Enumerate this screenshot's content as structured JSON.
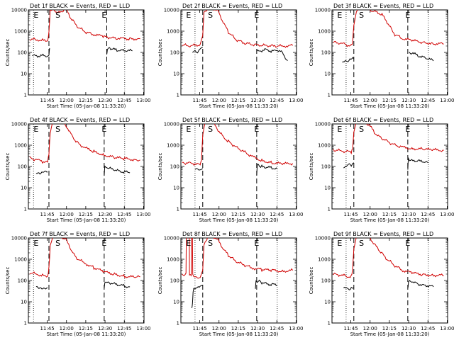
{
  "figure": {
    "xlabel": "Start Time (05-Jan-08 11:33:20)",
    "ylabel": "Counts/sec"
  },
  "chart_data": [
    {
      "type": "line",
      "title": "Det 1f BLACK = Events, RED = LLD",
      "xlabel": "Start Time (05-Jan-08 11:33:20)",
      "ylabel": "Counts/sec",
      "x_ticks": [
        "11:45",
        "12:00",
        "12:15",
        "12:30",
        "12:45",
        "13:00"
      ],
      "y_ticks": [
        "1",
        "10",
        "100",
        "1000",
        "10000"
      ],
      "y_scale": "log",
      "xlim_min": [
        -3,
        87
      ],
      "ylim": [
        1,
        10000
      ],
      "markers": [
        "E",
        "S",
        "E"
      ],
      "marker_times_min": [
        3,
        20,
        56
      ],
      "dotted_lines_min": [
        1,
        72
      ],
      "dashed_lines_min": [
        13,
        58
      ],
      "series": [
        {
          "name": "Events",
          "color": "#000000",
          "x_min": [
            0,
            5,
            10,
            13,
            13.5,
            20,
            30,
            40,
            50,
            56
          ],
          "y": [
            70,
            68,
            72,
            70,
            160,
            null,
            null,
            null,
            null,
            null
          ],
          "x2_min": [
            58,
            58.5,
            62,
            66,
            70,
            74,
            78
          ],
          "y2": [
            70,
            150,
            140,
            130,
            125,
            120,
            118
          ]
        },
        {
          "name": "LLD",
          "color": "#d00000",
          "x_min": [
            -2,
            4,
            8,
            12,
            13,
            14,
            16,
            20,
            24,
            26,
            30,
            36,
            42,
            48,
            56,
            62,
            68,
            76,
            84
          ],
          "y": [
            420,
            400,
            370,
            360,
            900,
            9000,
            12000,
            7000,
            9000,
            12000,
            4000,
            1500,
            900,
            700,
            550,
            480,
            450,
            440,
            440
          ]
        }
      ]
    },
    {
      "type": "line",
      "title": "Det 2f BLACK = Events, RED = LLD",
      "xlabel": "Start Time (05-Jan-08 11:33:20)",
      "ylabel": "Counts/sec",
      "x_ticks": [
        "11:45",
        "12:00",
        "12:15",
        "12:30",
        "12:45",
        "13:00"
      ],
      "y_ticks": [
        "1",
        "10",
        "100",
        "1000",
        "10000"
      ],
      "y_scale": "log",
      "xlim_min": [
        -3,
        87
      ],
      "ylim": [
        1,
        10000
      ],
      "markers": [
        "E",
        "S",
        "E"
      ],
      "marker_times_min": [
        3,
        20,
        56
      ],
      "dotted_lines_min": [
        8,
        72
      ],
      "dashed_lines_min": [
        14,
        56
      ],
      "series": [
        {
          "name": "Events",
          "color": "#000000",
          "x_min": [
            6,
            8,
            10,
            12,
            14
          ],
          "y": [
            100,
            130,
            110,
            140,
            180
          ],
          "x2_min": [
            56,
            60,
            64,
            68,
            72,
            76,
            80
          ],
          "y2": [
            110,
            120,
            140,
            110,
            130,
            100,
            40
          ]
        },
        {
          "name": "LLD",
          "color": "#d00000",
          "x_min": [
            -2,
            4,
            8,
            12,
            14,
            15,
            18,
            22,
            26,
            30,
            34,
            40,
            46,
            52,
            58,
            64,
            70,
            76,
            84
          ],
          "y": [
            220,
            210,
            220,
            230,
            600,
            8000,
            12000,
            12000,
            9000,
            2500,
            900,
            400,
            280,
            240,
            220,
            210,
            200,
            200,
            210
          ]
        }
      ]
    },
    {
      "type": "line",
      "title": "Det 3f BLACK = Events, RED = LLD",
      "xlabel": "Start Time (05-Jan-08 11:33:20)",
      "ylabel": "Counts/sec",
      "x_ticks": [
        "11:45",
        "12:00",
        "12:15",
        "12:30",
        "12:45",
        "13:00"
      ],
      "y_ticks": [
        "1",
        "10",
        "100",
        "1000",
        "10000"
      ],
      "y_scale": "log",
      "xlim_min": [
        -3,
        87
      ],
      "ylim": [
        1,
        10000
      ],
      "markers": [
        "E",
        "S",
        "E"
      ],
      "marker_times_min": [
        3,
        20,
        56
      ],
      "dotted_lines_min": [
        8,
        72
      ],
      "dashed_lines_min": [
        14,
        56
      ],
      "series": [
        {
          "name": "Events",
          "color": "#000000",
          "x_min": [
            5,
            8,
            11,
            14
          ],
          "y": [
            30,
            40,
            45,
            50
          ],
          "x2_min": [
            57,
            60,
            64,
            68,
            72,
            76
          ],
          "y2": [
            100,
            90,
            70,
            60,
            50,
            40
          ]
        },
        {
          "name": "LLD",
          "color": "#d00000",
          "x_min": [
            -2,
            4,
            8,
            12,
            13,
            14,
            16,
            20,
            24,
            28,
            32,
            36,
            40,
            46,
            52,
            60,
            68,
            76,
            84
          ],
          "y": [
            300,
            270,
            230,
            210,
            260,
            2000,
            9000,
            12000,
            12000,
            9000,
            8000,
            6000,
            2500,
            700,
            450,
            350,
            300,
            260,
            250
          ]
        }
      ]
    },
    {
      "type": "line",
      "title": "Det 4f BLACK = Events, RED = LLD",
      "xlabel": "Start Time (05-Jan-08 11:33:20)",
      "ylabel": "Counts/sec",
      "x_ticks": [
        "11:45",
        "12:00",
        "12:15",
        "12:30",
        "12:45",
        "13:00"
      ],
      "y_ticks": [
        "1",
        "10",
        "100",
        "1000",
        "10000"
      ],
      "y_scale": "log",
      "xlim_min": [
        -3,
        87
      ],
      "ylim": [
        1,
        10000
      ],
      "markers": [
        "E",
        "S",
        "E"
      ],
      "marker_times_min": [
        3,
        20,
        56
      ],
      "dotted_lines_min": [
        1,
        72
      ],
      "dashed_lines_min": [
        13,
        56
      ],
      "series": [
        {
          "name": "Events",
          "color": "#000000",
          "x_min": [
            3,
            6,
            9,
            12
          ],
          "y": [
            50,
            45,
            60,
            55
          ],
          "x2_min": [
            56,
            56.5,
            60,
            64,
            68,
            72,
            76
          ],
          "y2": [
            40,
            90,
            80,
            70,
            60,
            55,
            50
          ]
        },
        {
          "name": "LLD",
          "color": "#d00000",
          "x_min": [
            -2,
            4,
            8,
            12,
            13,
            14,
            16,
            18,
            22,
            26,
            30,
            34,
            40,
            48,
            56,
            64,
            72,
            80,
            84
          ],
          "y": [
            250,
            200,
            170,
            160,
            400,
            4000,
            12000,
            12000,
            12000,
            9000,
            3500,
            1500,
            800,
            500,
            350,
            260,
            230,
            210,
            200
          ]
        }
      ]
    },
    {
      "type": "line",
      "title": "Det 5f BLACK = Events, RED = LLD",
      "xlabel": "Start Time (05-Jan-08 11:33:20)",
      "ylabel": "Counts/sec",
      "x_ticks": [
        "11:45",
        "12:00",
        "12:15",
        "12:30",
        "12:45",
        "13:00"
      ],
      "y_ticks": [
        "1",
        "10",
        "100",
        "1000",
        "10000"
      ],
      "y_scale": "log",
      "xlim_min": [
        -3,
        87
      ],
      "ylim": [
        1,
        10000
      ],
      "markers": [
        "E",
        "S",
        "E"
      ],
      "marker_times_min": [
        3,
        20,
        56
      ],
      "dotted_lines_min": [
        8,
        72
      ],
      "dashed_lines_min": [
        14,
        56
      ],
      "series": [
        {
          "name": "Events",
          "color": "#000000",
          "x_min": [
            8,
            10,
            12,
            14
          ],
          "y": [
            70,
            65,
            70,
            80
          ],
          "x2_min": [
            56,
            56.5,
            60,
            64,
            68,
            72
          ],
          "y2": [
            40,
            120,
            100,
            90,
            85,
            80
          ]
        },
        {
          "name": "LLD",
          "color": "#d00000",
          "x_min": [
            -2,
            4,
            8,
            12,
            13,
            14,
            16,
            18,
            22,
            26,
            30,
            34,
            40,
            46,
            52,
            60,
            68,
            76,
            84
          ],
          "y": [
            150,
            140,
            130,
            120,
            200,
            3000,
            12000,
            12000,
            12000,
            5000,
            2500,
            1500,
            800,
            500,
            300,
            190,
            150,
            130,
            140
          ]
        }
      ]
    },
    {
      "type": "line",
      "title": "Det 6f BLACK = Events, RED = LLD",
      "xlabel": "Start Time (05-Jan-08 11:33:20)",
      "ylabel": "Counts/sec",
      "x_ticks": [
        "11:45",
        "12:00",
        "12:15",
        "12:30",
        "12:45",
        "13:00"
      ],
      "y_ticks": [
        "1",
        "10",
        "100",
        "1000",
        "10000"
      ],
      "y_scale": "log",
      "xlim_min": [
        -3,
        87
      ],
      "ylim": [
        1,
        10000
      ],
      "markers": [
        "E",
        "S",
        "E"
      ],
      "marker_times_min": [
        3,
        20,
        56
      ],
      "dotted_lines_min": [
        8,
        72
      ],
      "dashed_lines_min": [
        14,
        56
      ],
      "series": [
        {
          "name": "Events",
          "color": "#000000",
          "x_min": [
            6,
            9,
            12,
            14
          ],
          "y": [
            100,
            110,
            120,
            150
          ],
          "x2_min": [
            56,
            56.5,
            60,
            64,
            68,
            72
          ],
          "y2": [
            80,
            220,
            200,
            180,
            170,
            150
          ]
        },
        {
          "name": "LLD",
          "color": "#d00000",
          "x_min": [
            -2,
            4,
            8,
            12,
            13,
            14,
            16,
            18,
            22,
            26,
            30,
            34,
            40,
            46,
            52,
            60,
            68,
            76,
            84
          ],
          "y": [
            600,
            550,
            500,
            480,
            700,
            4000,
            12000,
            12000,
            12000,
            9000,
            4000,
            2500,
            1500,
            1000,
            800,
            700,
            650,
            600,
            580
          ]
        }
      ]
    },
    {
      "type": "line",
      "title": "Det 7f BLACK = Events, RED = LLD",
      "xlabel": "Start Time (05-Jan-08 11:33:20)",
      "ylabel": "Counts/sec",
      "x_ticks": [
        "11:45",
        "12:00",
        "12:15",
        "12:30",
        "12:45",
        "13:00"
      ],
      "y_ticks": [
        "1",
        "10",
        "100",
        "1000",
        "10000"
      ],
      "y_scale": "log",
      "xlim_min": [
        -3,
        87
      ],
      "ylim": [
        1,
        10000
      ],
      "markers": [
        "E",
        "S",
        "E"
      ],
      "marker_times_min": [
        3,
        20,
        56
      ],
      "dotted_lines_min": [
        1,
        72
      ],
      "dashed_lines_min": [
        13,
        56
      ],
      "series": [
        {
          "name": "Events",
          "color": "#000000",
          "x_min": [
            3,
            6,
            9,
            12
          ],
          "y": [
            50,
            45,
            40,
            45
          ],
          "x2_min": [
            56,
            56.5,
            60,
            64,
            68,
            72,
            76
          ],
          "y2": [
            40,
            90,
            80,
            70,
            60,
            55,
            50
          ]
        },
        {
          "name": "LLD",
          "color": "#d00000",
          "x_min": [
            -2,
            4,
            8,
            12,
            13,
            14,
            16,
            18,
            22,
            26,
            30,
            34,
            40,
            48,
            56,
            64,
            72,
            80,
            84
          ],
          "y": [
            230,
            200,
            170,
            160,
            400,
            4000,
            12000,
            12000,
            12000,
            9000,
            3000,
            1200,
            700,
            400,
            250,
            200,
            160,
            140,
            150
          ]
        }
      ]
    },
    {
      "type": "line",
      "title": "Det 8f BLACK = Events, RED = LLD",
      "xlabel": "Start Time (05-Jan-08 11:33:20)",
      "ylabel": "Counts/sec",
      "x_ticks": [
        "11:45",
        "12:00",
        "12:15",
        "12:30",
        "12:45",
        "13:00"
      ],
      "y_ticks": [
        "1",
        "10",
        "100",
        "1000",
        "10000"
      ],
      "y_scale": "log",
      "xlim_min": [
        -3,
        87
      ],
      "ylim": [
        1,
        10000
      ],
      "markers": [
        "E",
        "S",
        "E"
      ],
      "marker_times_min": [
        3,
        20,
        56
      ],
      "dotted_lines_min": [
        8,
        72
      ],
      "dashed_lines_min": [
        14,
        56
      ],
      "series": [
        {
          "name": "Events",
          "color": "#000000",
          "x_min": [
            5.5,
            6,
            6.5,
            7,
            9,
            12,
            14
          ],
          "y": [
            5,
            8,
            30,
            40,
            50,
            55,
            60
          ],
          "x2_min": [
            55,
            55.5,
            60,
            64,
            68,
            72
          ],
          "y2": [
            40,
            100,
            80,
            70,
            65,
            60
          ]
        },
        {
          "name": "LLD",
          "color": "#d00000",
          "x_min": [
            -2,
            1,
            1.2,
            3.5,
            3.7,
            5,
            5.2,
            6,
            6.2,
            8,
            12,
            14,
            15,
            18,
            22,
            26,
            30,
            34,
            40,
            46,
            52,
            60,
            68,
            76,
            84
          ],
          "y": [
            200,
            190,
            12000,
            12000,
            180,
            180,
            12000,
            12000,
            170,
            150,
            140,
            300,
            5000,
            12000,
            12000,
            8000,
            3000,
            1500,
            800,
            550,
            400,
            320,
            300,
            280,
            300
          ]
        }
      ]
    },
    {
      "type": "line",
      "title": "Det 9f BLACK = Events, RED = LLD",
      "xlabel": "Start Time (05-Jan-08 11:33:20)",
      "ylabel": "Counts/sec",
      "x_ticks": [
        "11:45",
        "12:00",
        "12:15",
        "12:30",
        "12:45",
        "13:00"
      ],
      "y_ticks": [
        "1",
        "10",
        "100",
        "1000",
        "10000"
      ],
      "y_scale": "log",
      "xlim_min": [
        -3,
        87
      ],
      "ylim": [
        1,
        10000
      ],
      "markers": [
        "E",
        "S",
        "E"
      ],
      "marker_times_min": [
        3,
        20,
        56
      ],
      "dotted_lines_min": [
        8,
        72
      ],
      "dashed_lines_min": [
        14,
        56
      ],
      "series": [
        {
          "name": "Events",
          "color": "#000000",
          "x_min": [
            6,
            9,
            12,
            14
          ],
          "y": [
            40,
            45,
            40,
            45
          ],
          "x2_min": [
            56,
            56.5,
            60,
            64,
            68,
            72,
            76
          ],
          "y2": [
            40,
            90,
            80,
            70,
            60,
            55,
            50
          ]
        },
        {
          "name": "LLD",
          "color": "#d00000",
          "x_min": [
            -2,
            4,
            8,
            12,
            13,
            14,
            16,
            18,
            22,
            26,
            30,
            34,
            40,
            46,
            52,
            60,
            68,
            76,
            84
          ],
          "y": [
            200,
            180,
            160,
            150,
            300,
            3000,
            12000,
            12000,
            12000,
            12000,
            5000,
            2500,
            1000,
            500,
            300,
            220,
            190,
            180,
            170
          ]
        }
      ]
    }
  ]
}
